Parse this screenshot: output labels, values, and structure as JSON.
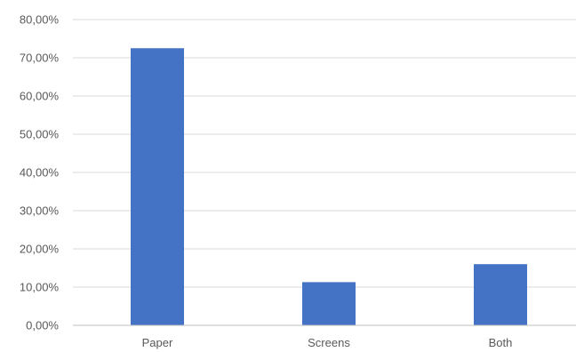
{
  "chart_data": {
    "type": "bar",
    "categories": [
      "Paper",
      "Screens",
      "Both"
    ],
    "values": [
      72.5,
      11.3,
      16.0
    ],
    "y_tick_labels": [
      "0,00%",
      "10,00%",
      "20,00%",
      "30,00%",
      "40,00%",
      "50,00%",
      "60,00%",
      "70,00%",
      "80,00%"
    ],
    "y_ticks": [
      0,
      10,
      20,
      30,
      40,
      50,
      60,
      70,
      80
    ],
    "ylim": [
      0,
      80
    ],
    "grid": true,
    "legend": "none",
    "colors": {
      "bar": "#4472c4",
      "grid": "#d9d9d9",
      "axis": "#bfbfbf",
      "text": "#595959"
    }
  }
}
